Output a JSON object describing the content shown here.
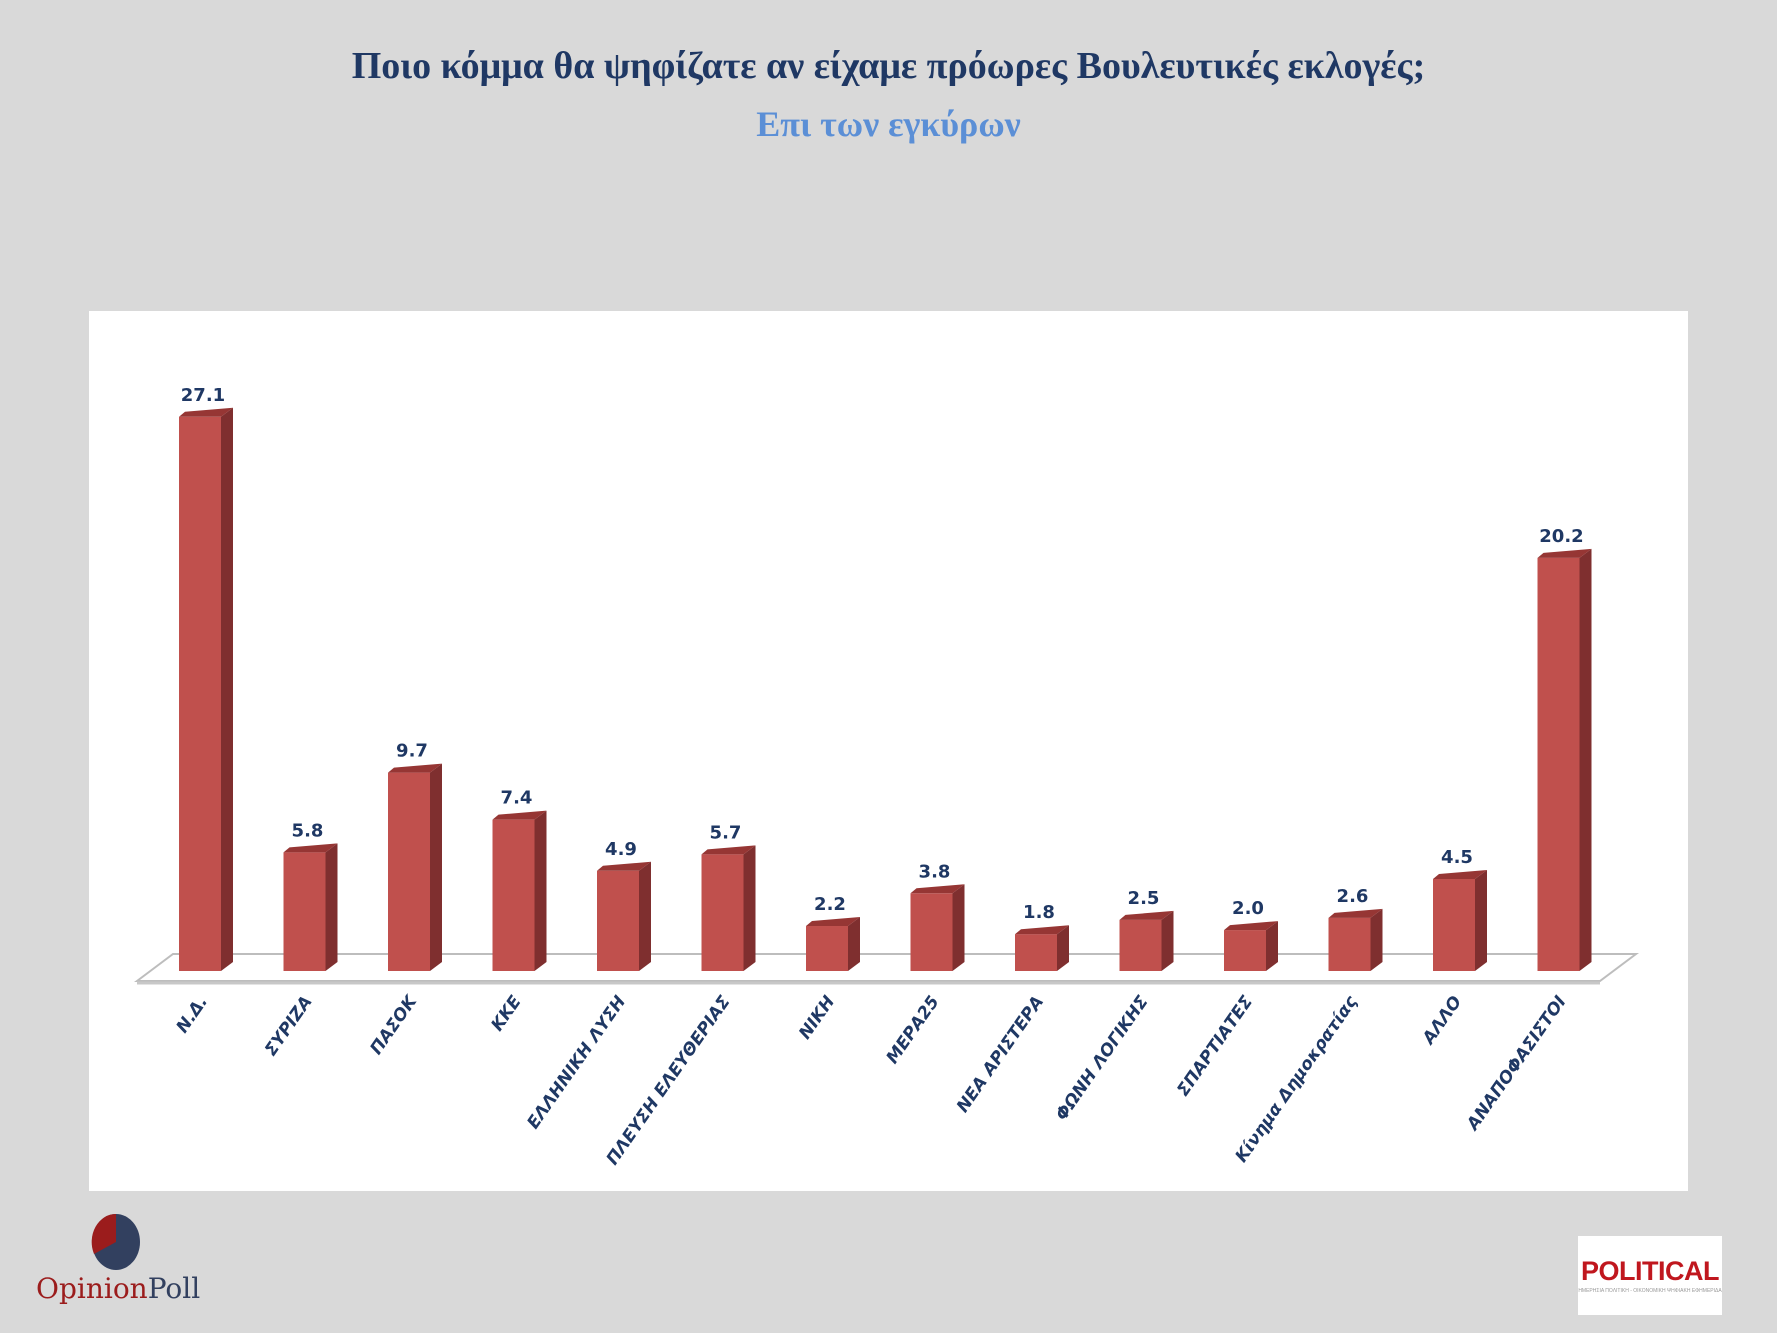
{
  "header": {
    "title": "Ποιο κόμμα θα ψηφίζατε αν είχαμε πρόωρες Βουλευτικές εκλογές;",
    "subtitle": "Επι των εγκύρων"
  },
  "colors": {
    "background": "#d9d9d9",
    "bar_front": "#c0504d",
    "bar_side": "#7f2f2f",
    "bar_top": "#963634",
    "label": "#1f3864",
    "title": "#1f3864",
    "subtitle": "#5b8fd6"
  },
  "chart_data": {
    "type": "bar",
    "title": "Ποιο κόμμα θα ψηφίζατε αν είχαμε πρόωρες Βουλευτικές εκλογές;",
    "subtitle": "Επι των εγκύρων",
    "categories": [
      "Ν.Δ.",
      "ΣΥΡΙΖΑ",
      "ΠΑΣΟΚ",
      "ΚΚΕ",
      "ΕΛΛΗΝΙΚΗ ΛΥΣΗ",
      "ΠΛΕΥΣΗ ΕΛΕΥΘΕΡΙΑΣ",
      "ΝΙΚΗ",
      "ΜΕΡΑ25",
      "ΝΕΑ ΑΡΙΣΤΕΡΑ",
      "ΦΩΝΗ ΛΟΓΙΚΗΣ",
      "ΣΠΑΡΤΙΑΤΕΣ",
      "Κίνημα Δημοκρατίας",
      "ΑΛΛΟ",
      "ΑΝΑΠΟΦΑΣΙΣΤΟΙ"
    ],
    "values": [
      27.1,
      5.8,
      9.7,
      7.4,
      4.9,
      5.7,
      2.2,
      3.8,
      1.8,
      2.5,
      2.0,
      2.6,
      4.5,
      20.2
    ],
    "value_labels": [
      "27.1",
      "5.8",
      "9.7",
      "7.4",
      "4.9",
      "5.7",
      "2.2",
      "3.8",
      "1.8",
      "2.5",
      "2.0",
      "2.6",
      "4.5",
      "20.2"
    ],
    "xlabel": "",
    "ylabel": "",
    "ylim": [
      0,
      30
    ],
    "grid": false,
    "legend": "none",
    "style": "3d-column"
  },
  "footer": {
    "left_logo": {
      "part1": "Opinion",
      "part2": "Poll"
    },
    "right_logo": {
      "text": "POLITICAL",
      "tagline": "ΗΜΕΡΗΣΙΑ ΠΟΛΙΤΙΚΗ - ΟΙΚΟΝΟΜΙΚΗ ΨΗΦΙΑΚΗ ΕΦΗΜΕΡΙΔΑ"
    }
  }
}
